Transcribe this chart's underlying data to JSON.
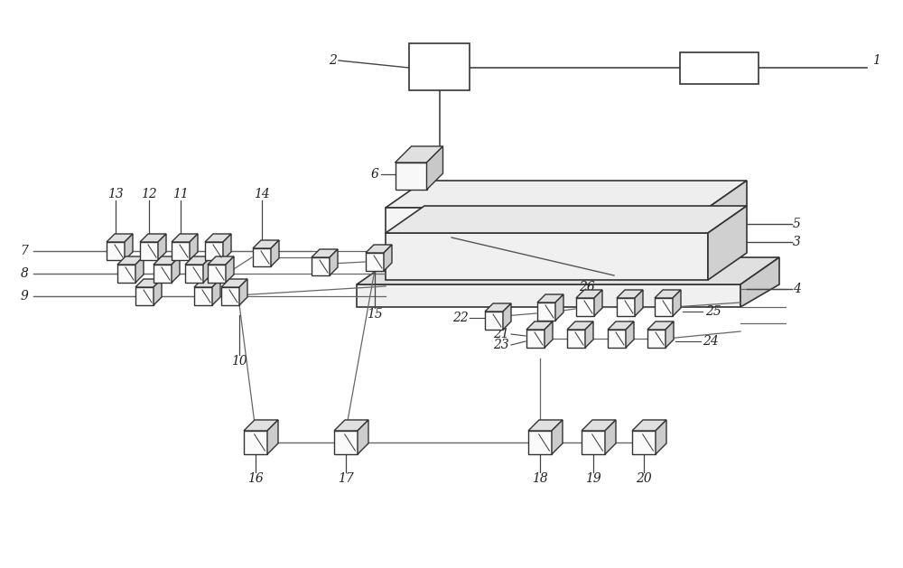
{
  "bg_color": "#ffffff",
  "ec": "#333333",
  "lc": "#444444",
  "fig_width": 10.0,
  "fig_height": 6.29,
  "dpi": 100
}
